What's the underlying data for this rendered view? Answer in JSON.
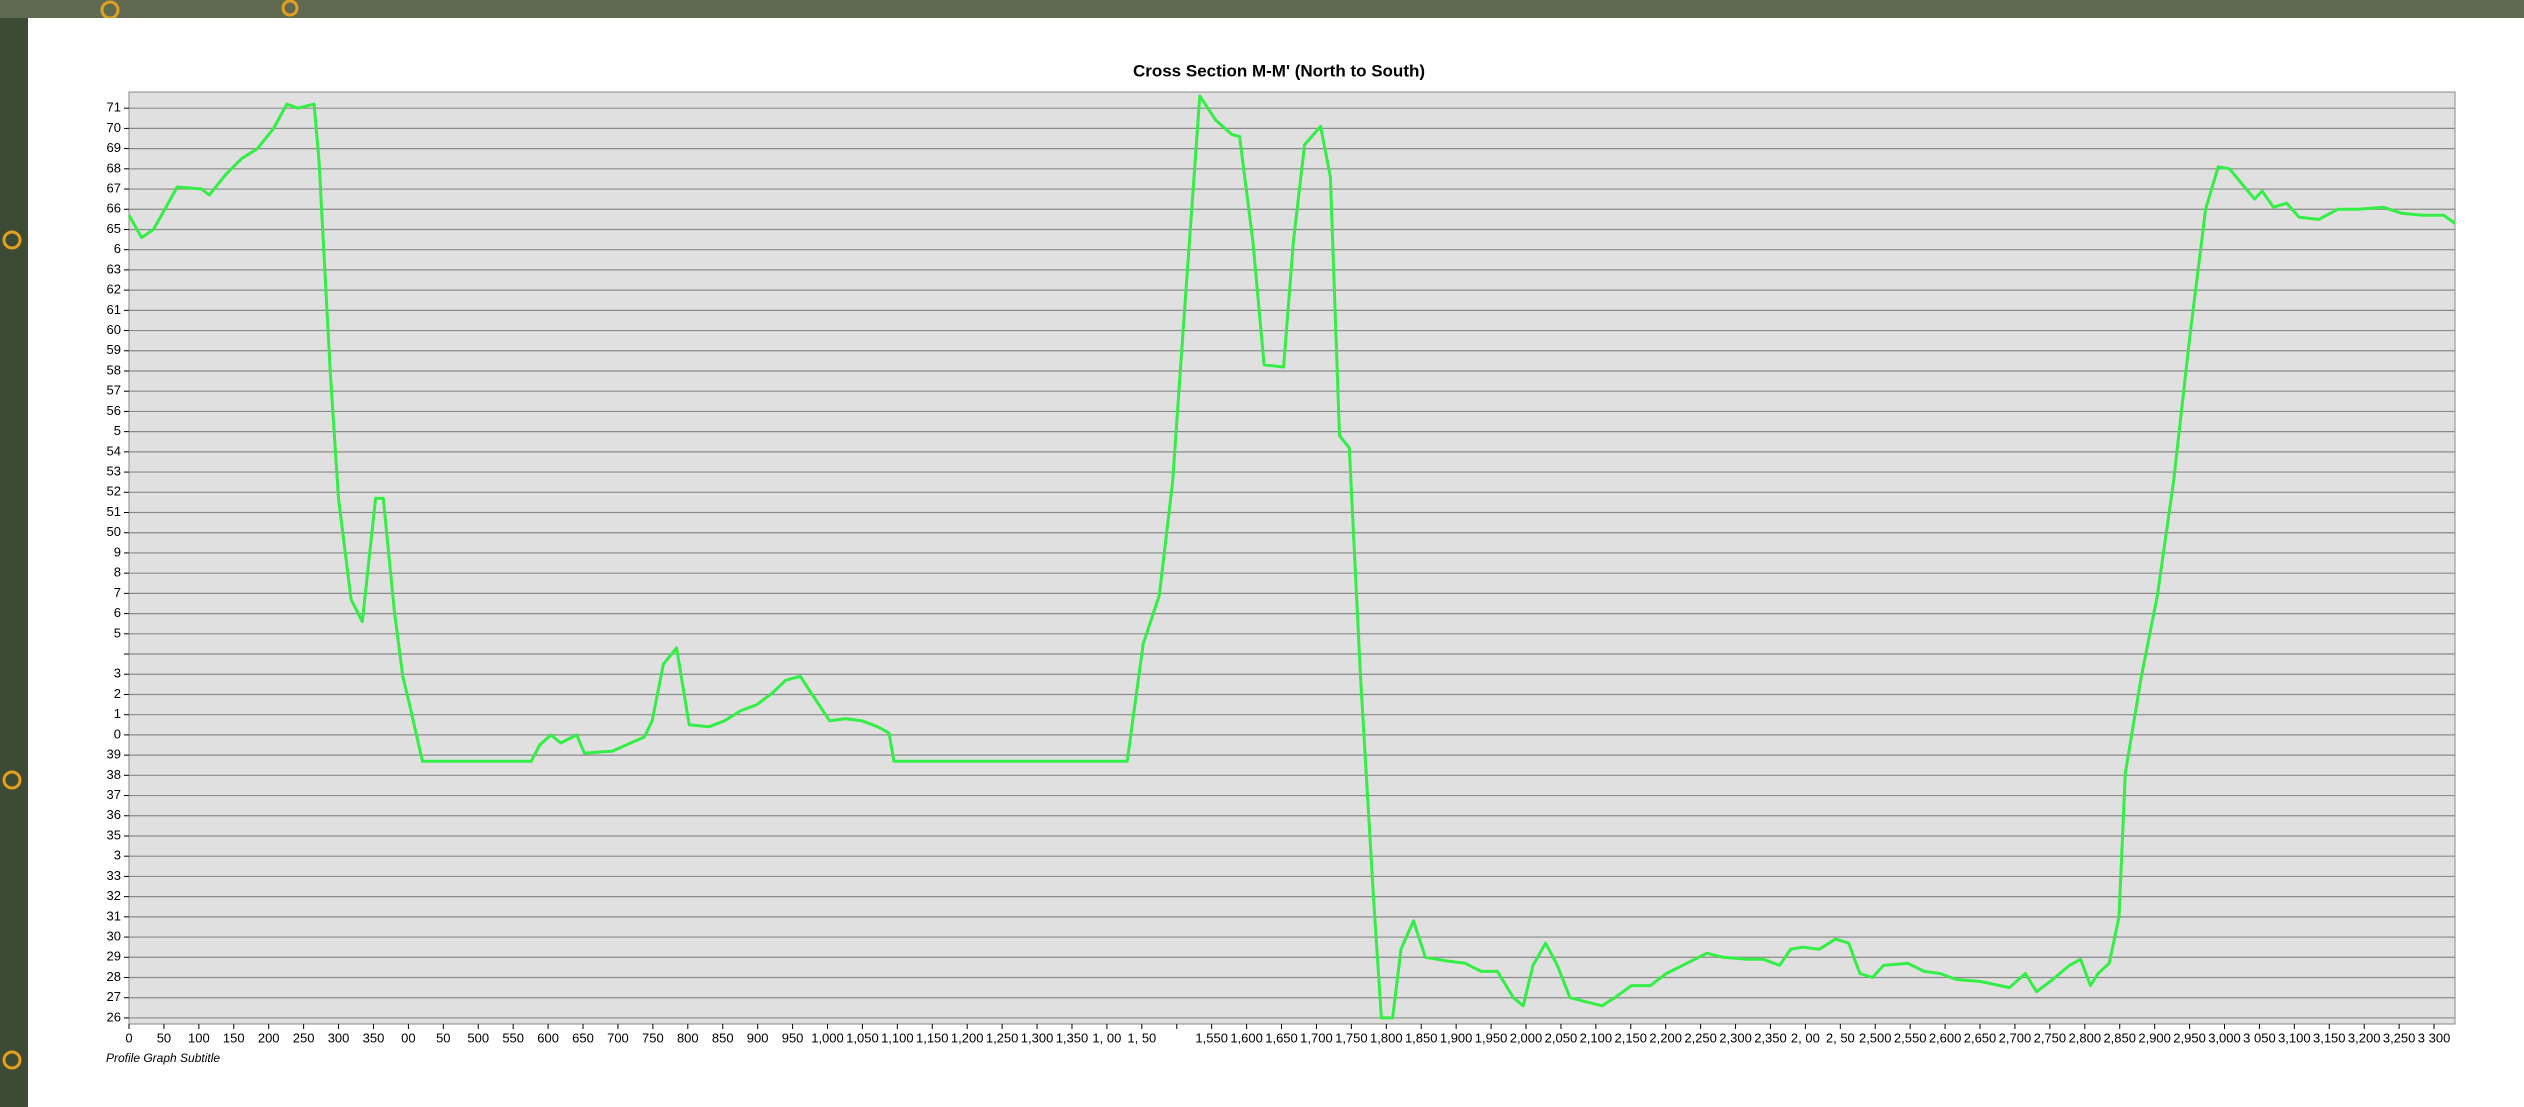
{
  "chart_data": {
    "type": "line",
    "title": "Cross Section M-M' (North to South)",
    "subtitle": "Profile Graph Subtitle",
    "x": [
      0,
      18,
      35,
      53,
      69,
      104,
      115,
      138,
      161,
      184,
      207,
      226,
      242,
      265,
      272,
      288,
      300,
      318,
      334,
      353,
      364,
      380,
      392,
      403,
      420,
      576,
      588,
      604,
      618,
      641,
      652,
      692,
      738,
      749,
      765,
      784,
      802,
      830,
      853,
      876,
      899,
      922,
      940,
      961,
      980,
      1003,
      1026,
      1049,
      1072,
      1088,
      1095,
      1429,
      1452,
      1475,
      1494,
      1510,
      1533,
      1556,
      1579,
      1590,
      1609,
      1625,
      1653,
      1667,
      1683,
      1706,
      1720,
      1733,
      1747,
      1763,
      1782,
      1793,
      1809,
      1821,
      1839,
      1856,
      1890,
      1913,
      1936,
      1959,
      1982,
      1996,
      2010,
      2028,
      2045,
      2063,
      2086,
      2109,
      2127,
      2151,
      2178,
      2201,
      2236,
      2259,
      2282,
      2317,
      2340,
      2363,
      2379,
      2397,
      2420,
      2443,
      2462,
      2478,
      2496,
      2512,
      2547,
      2570,
      2593,
      2616,
      2651,
      2692,
      2715,
      2731,
      2754,
      2778,
      2794,
      2808,
      2819,
      2835,
      2849,
      2858,
      2881,
      2904,
      2927,
      2950,
      2973,
      2991,
      3007,
      3024,
      3043,
      3054,
      3070,
      3089,
      3107,
      3135,
      3162,
      3192,
      3227,
      3254,
      3284,
      3314,
      3330
    ],
    "series": [
      {
        "color": "#33ee44",
        "values": [
          65.7,
          64.6,
          65.0,
          66.1,
          67.1,
          67.0,
          66.7,
          67.7,
          68.5,
          69.0,
          70.0,
          71.2,
          71.0,
          71.2,
          68.4,
          58.0,
          51.7,
          46.7,
          45.6,
          51.7,
          51.7,
          46.1,
          42.9,
          41.3,
          38.7,
          38.7,
          39.5,
          40.0,
          39.6,
          40.0,
          39.1,
          39.2,
          39.9,
          40.7,
          43.5,
          44.3,
          40.5,
          40.4,
          40.7,
          41.2,
          41.5,
          42.1,
          42.7,
          42.9,
          41.9,
          40.7,
          40.8,
          40.7,
          40.4,
          40.1,
          38.7,
          38.7,
          44.5,
          46.9,
          52.5,
          60.4,
          71.6,
          70.4,
          69.7,
          69.6,
          64.4,
          58.3,
          58.2,
          64.4,
          69.2,
          70.1,
          67.6,
          54.8,
          54.2,
          42.9,
          31.8,
          26.0,
          26.0,
          29.4,
          30.8,
          29.0,
          28.8,
          28.7,
          28.3,
          28.3,
          27.0,
          26.6,
          28.6,
          29.7,
          28.6,
          27.0,
          26.8,
          26.6,
          27.0,
          27.6,
          27.6,
          28.2,
          28.8,
          29.2,
          29.0,
          28.9,
          28.9,
          28.6,
          29.4,
          29.5,
          29.4,
          29.9,
          29.7,
          28.2,
          28.0,
          28.6,
          28.7,
          28.3,
          28.2,
          27.9,
          27.8,
          27.5,
          28.2,
          27.3,
          27.9,
          28.6,
          28.9,
          27.6,
          28.2,
          28.7,
          31.0,
          38.1,
          42.9,
          46.9,
          52.5,
          59.6,
          66.0,
          68.1,
          68.0,
          67.3,
          66.5,
          66.9,
          66.1,
          66.3,
          65.6,
          65.5,
          66.0,
          66.0,
          66.1,
          65.8,
          65.7,
          65.7,
          65.3
        ]
      }
    ],
    "xlim": [
      0,
      3330
    ],
    "ylim": [
      25.7,
      71.8
    ],
    "grid": "y",
    "yticks": [
      71,
      70,
      69,
      68,
      67,
      66,
      65,
      {
        "value": 64,
        "label": "6"
      },
      63,
      62,
      61,
      60,
      59,
      58,
      57,
      56,
      {
        "value": 55,
        "label": "5"
      },
      54,
      53,
      52,
      51,
      50,
      {
        "value": 49,
        "label": "9"
      },
      {
        "value": 48,
        "label": "8"
      },
      {
        "value": 47,
        "label": "7"
      },
      {
        "value": 46,
        "label": "6"
      },
      {
        "value": 45,
        "label": "5"
      },
      {
        "value": 44,
        "label": null
      },
      {
        "value": 43,
        "label": "3"
      },
      {
        "value": 42,
        "label": "2"
      },
      {
        "value": 41,
        "label": "1"
      },
      {
        "value": 40,
        "label": "0"
      },
      39,
      38,
      37,
      36,
      35,
      {
        "value": 34,
        "label": "3"
      },
      33,
      32,
      31,
      30,
      29,
      28,
      27,
      26
    ],
    "xticks": [
      0,
      50,
      100,
      150,
      200,
      250,
      300,
      350,
      {
        "value": 400,
        "label": "00"
      },
      {
        "value": 450,
        "label": "50"
      },
      500,
      550,
      600,
      650,
      700,
      750,
      800,
      850,
      900,
      950,
      {
        "value": 1000,
        "label": "1,000"
      },
      {
        "value": 1050,
        "label": "1,050"
      },
      {
        "value": 1100,
        "label": "1,100"
      },
      {
        "value": 1150,
        "label": "1,150"
      },
      {
        "value": 1200,
        "label": "1,200"
      },
      {
        "value": 1250,
        "label": "1,250"
      },
      {
        "value": 1300,
        "label": "1,300"
      },
      {
        "value": 1350,
        "label": "1,350"
      },
      {
        "value": 1400,
        "label": "1, 00"
      },
      {
        "value": 1450,
        "label": "1, 50"
      },
      {
        "value": 1500,
        "label": null
      },
      {
        "value": 1550,
        "label": "1,550"
      },
      {
        "value": 1600,
        "label": "1,600"
      },
      {
        "value": 1650,
        "label": "1,650"
      },
      {
        "value": 1700,
        "label": "1,700"
      },
      {
        "value": 1750,
        "label": "1,750"
      },
      {
        "value": 1800,
        "label": "1,800"
      },
      {
        "value": 1850,
        "label": "1,850"
      },
      {
        "value": 1900,
        "label": "1,900"
      },
      {
        "value": 1950,
        "label": "1,950"
      },
      {
        "value": 2000,
        "label": "2,000"
      },
      {
        "value": 2050,
        "label": "2,050"
      },
      {
        "value": 2100,
        "label": "2,100"
      },
      {
        "value": 2150,
        "label": "2,150"
      },
      {
        "value": 2200,
        "label": "2,200"
      },
      {
        "value": 2250,
        "label": "2,250"
      },
      {
        "value": 2300,
        "label": "2,300"
      },
      {
        "value": 2350,
        "label": "2,350"
      },
      {
        "value": 2400,
        "label": "2, 00"
      },
      {
        "value": 2450,
        "label": "2, 50"
      },
      {
        "value": 2500,
        "label": "2,500"
      },
      {
        "value": 2550,
        "label": "2,550"
      },
      {
        "value": 2600,
        "label": "2,600"
      },
      {
        "value": 2650,
        "label": "2,650"
      },
      {
        "value": 2700,
        "label": "2,700"
      },
      {
        "value": 2750,
        "label": "2,750"
      },
      {
        "value": 2800,
        "label": "2,800"
      },
      {
        "value": 2850,
        "label": "2,850"
      },
      {
        "value": 2900,
        "label": "2,900"
      },
      {
        "value": 2950,
        "label": "2,950"
      },
      {
        "value": 3000,
        "label": "3,000"
      },
      {
        "value": 3050,
        "label": "3 050"
      },
      {
        "value": 3100,
        "label": "3,100"
      },
      {
        "value": 3150,
        "label": "3,150"
      },
      {
        "value": 3200,
        "label": "3,200"
      },
      {
        "value": 3250,
        "label": "3,250"
      },
      {
        "value": 3300,
        "label": "3 300"
      }
    ]
  }
}
